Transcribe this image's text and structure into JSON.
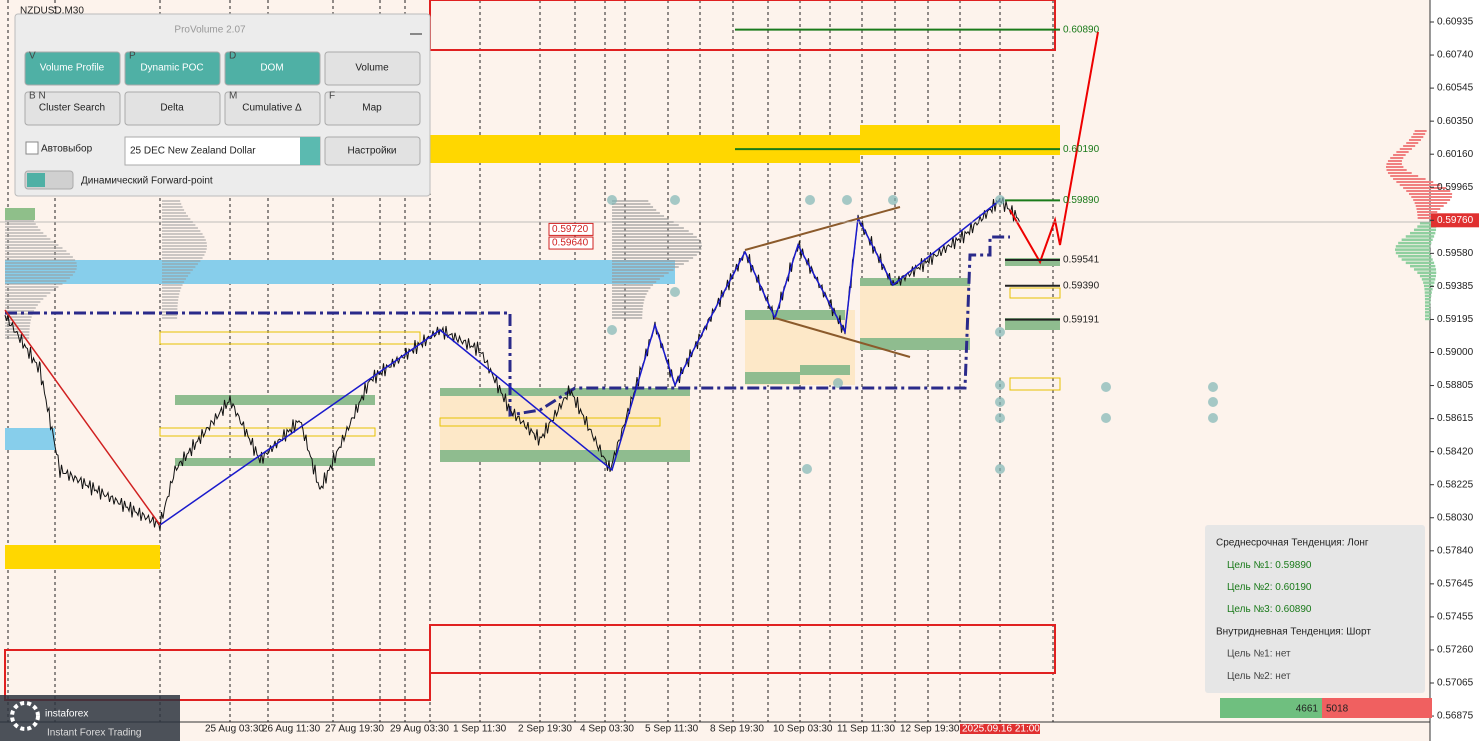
{
  "window_title": "NZDUSD,M30",
  "panel": {
    "title": "ProVolume 2.07",
    "buttons": [
      {
        "hotkey": "V",
        "label": "Volume Profile"
      },
      {
        "hotkey": "P",
        "label": "Dynamic POC"
      },
      {
        "hotkey": "D",
        "label": "DOM"
      },
      {
        "label": "Volume"
      },
      {
        "hotkey": "B N",
        "label": "Cluster Search"
      },
      {
        "label": "Delta"
      },
      {
        "hotkey": "M",
        "label": "Cumulative Δ"
      },
      {
        "hotkey": "F",
        "label": "Map"
      }
    ],
    "checkbox": "Автовыбор",
    "instrument": "25 DEC New Zealand Dollar",
    "settings": "Настройки",
    "toggle": "Динамический Forward-point"
  },
  "price_axis": [
    "0.60935",
    "0.60740",
    "0.60545",
    "0.60350",
    "0.60160",
    "0.59965",
    "0.59760",
    "0.59580",
    "0.59385",
    "0.59195",
    "0.59000",
    "0.58805",
    "0.58615",
    "0.58420",
    "0.58225",
    "0.58030",
    "0.57840",
    "0.57645",
    "0.57455",
    "0.57260",
    "0.57065",
    "0.56875"
  ],
  "time_axis": [
    "25 Aug 03:30",
    "26 Aug 11:30",
    "27 Aug 19:30",
    "29 Aug 03:30",
    "1 Sep 11:30",
    "2 Sep 19:30",
    "4 Sep 03:30",
    "5 Sep 11:30",
    "8 Sep 19:30",
    "10 Sep 03:30",
    "11 Sep 11:30",
    "12 Sep 19:30",
    "2025.09.16 21:00"
  ],
  "levels": [
    "0.60890",
    "0.60190",
    "0.59890",
    "0.59541",
    "0.59390",
    "0.59191"
  ],
  "marked_prices": [
    "0.59720",
    "0.59640"
  ],
  "info": {
    "lines": [
      "Среднесрочная Тенденция: Лонг",
      "Цель №1: 0.59890",
      "Цель №2: 0.60190",
      "Цель №3: 0.60890",
      "Внутридневная Тенденция: Шорт",
      "Цель №1: нет",
      "Цель №2: нет"
    ]
  },
  "counters": [
    "4661",
    "5018"
  ],
  "logo": {
    "name": "instaforex",
    "tagline": "Instant Forex Trading"
  }
}
